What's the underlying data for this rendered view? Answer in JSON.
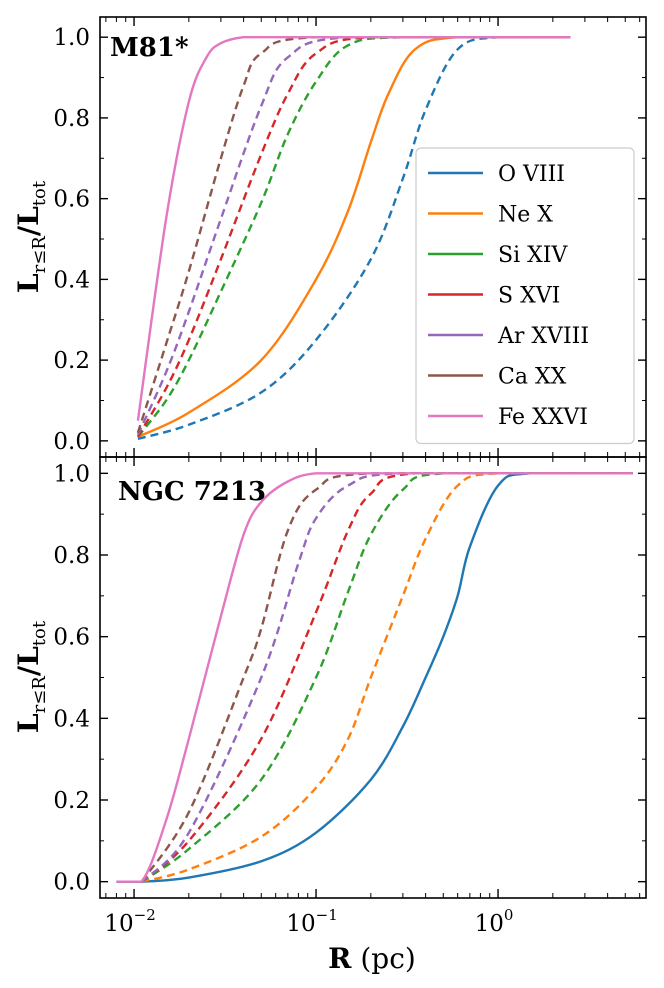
{
  "chart_data": [
    {
      "type": "line",
      "title": "M81*",
      "xlabel": "",
      "ylabel": "L r≤R / L tot",
      "xscale": "log",
      "xlim": [
        0.0065,
        6.5
      ],
      "ylim": [
        -0.04,
        1.05
      ],
      "yticks": [
        0.0,
        0.2,
        0.4,
        0.6,
        0.8,
        1.0
      ],
      "ytick_labels": [
        "0.0",
        "0.2",
        "0.4",
        "0.6",
        "0.8",
        "1.0"
      ],
      "legend": {
        "placement": "center-right"
      },
      "series": [
        {
          "name": "O VIII",
          "color": "#1f77b4",
          "style": "dashed",
          "x": [
            0.0105,
            0.02,
            0.05,
            0.1,
            0.2,
            0.3,
            0.4,
            0.6,
            1.0,
            2.5
          ],
          "y": [
            0.005,
            0.04,
            0.12,
            0.25,
            0.45,
            0.65,
            0.82,
            0.97,
            1.0,
            1.0
          ]
        },
        {
          "name": "Ne X",
          "color": "#ff7f0e",
          "style": "solid",
          "x": [
            0.0105,
            0.02,
            0.05,
            0.1,
            0.15,
            0.2,
            0.25,
            0.35,
            0.6,
            2.5
          ],
          "y": [
            0.01,
            0.07,
            0.2,
            0.4,
            0.57,
            0.74,
            0.86,
            0.97,
            1.0,
            1.0
          ]
        },
        {
          "name": "Si XIV",
          "color": "#2ca02c",
          "style": "dashed",
          "x": [
            0.0105,
            0.015,
            0.02,
            0.03,
            0.05,
            0.07,
            0.1,
            0.15,
            0.3,
            2.5
          ],
          "y": [
            0.01,
            0.1,
            0.2,
            0.37,
            0.59,
            0.76,
            0.89,
            0.98,
            1.0,
            1.0
          ]
        },
        {
          "name": "S XVI",
          "color": "#d62728",
          "style": "dashed",
          "x": [
            0.0105,
            0.015,
            0.02,
            0.03,
            0.05,
            0.07,
            0.1,
            0.2,
            2.5
          ],
          "y": [
            0.01,
            0.13,
            0.25,
            0.45,
            0.71,
            0.86,
            0.96,
            1.0,
            1.0
          ]
        },
        {
          "name": "Ar XVIII",
          "color": "#9467bd",
          "style": "dashed",
          "x": [
            0.0105,
            0.015,
            0.02,
            0.03,
            0.05,
            0.07,
            0.15,
            2.5
          ],
          "y": [
            0.015,
            0.17,
            0.32,
            0.55,
            0.83,
            0.95,
            1.0,
            1.0
          ]
        },
        {
          "name": "Ca XX",
          "color": "#8c564b",
          "style": "dashed",
          "x": [
            0.0105,
            0.015,
            0.02,
            0.03,
            0.04,
            0.05,
            0.1,
            2.5
          ],
          "y": [
            0.02,
            0.24,
            0.42,
            0.7,
            0.88,
            0.96,
            1.0,
            1.0
          ]
        },
        {
          "name": "Fe XXVI",
          "color": "#e377c2",
          "style": "solid",
          "x": [
            0.0105,
            0.015,
            0.02,
            0.025,
            0.03,
            0.04,
            0.06,
            2.5
          ],
          "y": [
            0.05,
            0.55,
            0.84,
            0.95,
            0.985,
            1.0,
            1.0,
            1.0
          ]
        }
      ]
    },
    {
      "type": "line",
      "title": "NGC 7213",
      "xlabel": "R (pc)",
      "ylabel": "L r≤R / L tot",
      "xscale": "log",
      "xlim": [
        0.0065,
        6.5
      ],
      "ylim": [
        -0.04,
        1.04
      ],
      "yticks": [
        0.0,
        0.2,
        0.4,
        0.6,
        0.8,
        1.0
      ],
      "ytick_labels": [
        "0.0",
        "0.2",
        "0.4",
        "0.6",
        "0.8",
        "1.0"
      ],
      "xticks": [
        0.01,
        0.1,
        1.0
      ],
      "xtick_labels": [
        [
          "10",
          "−2"
        ],
        [
          "10",
          "−1"
        ],
        [
          "10",
          "0"
        ]
      ],
      "series": [
        {
          "name": "O VIII",
          "color": "#1f77b4",
          "style": "solid",
          "x": [
            0.008,
            0.011,
            0.02,
            0.05,
            0.1,
            0.2,
            0.3,
            0.4,
            0.5,
            0.6,
            0.7,
            1.0,
            1.5,
            5.5
          ],
          "y": [
            0.0,
            0.0,
            0.01,
            0.05,
            0.12,
            0.25,
            0.38,
            0.5,
            0.6,
            0.7,
            0.82,
            0.97,
            1.0,
            1.0
          ]
        },
        {
          "name": "Ne X",
          "color": "#ff7f0e",
          "style": "dashed",
          "x": [
            0.011,
            0.02,
            0.05,
            0.1,
            0.15,
            0.2,
            0.3,
            0.4,
            0.6,
            1.0,
            5.5
          ],
          "y": [
            0.0,
            0.03,
            0.11,
            0.23,
            0.35,
            0.5,
            0.7,
            0.84,
            0.97,
            1.0,
            1.0
          ]
        },
        {
          "name": "Si XIV",
          "color": "#2ca02c",
          "style": "dashed",
          "x": [
            0.011,
            0.02,
            0.05,
            0.1,
            0.15,
            0.2,
            0.3,
            0.5,
            5.5
          ],
          "y": [
            0.0,
            0.08,
            0.25,
            0.5,
            0.71,
            0.85,
            0.96,
            1.0,
            1.0
          ]
        },
        {
          "name": "S XVI",
          "color": "#d62728",
          "style": "dashed",
          "x": [
            0.011,
            0.02,
            0.05,
            0.1,
            0.15,
            0.2,
            0.35,
            5.5
          ],
          "y": [
            0.0,
            0.1,
            0.35,
            0.66,
            0.86,
            0.95,
            1.0,
            1.0
          ]
        },
        {
          "name": "Ar XVIII",
          "color": "#9467bd",
          "style": "dashed",
          "x": [
            0.011,
            0.02,
            0.05,
            0.08,
            0.1,
            0.15,
            0.3,
            5.5
          ],
          "y": [
            0.0,
            0.12,
            0.5,
            0.78,
            0.89,
            0.97,
            1.0,
            1.0
          ]
        },
        {
          "name": "Ca XX",
          "color": "#8c564b",
          "style": "dashed",
          "x": [
            0.011,
            0.02,
            0.04,
            0.05,
            0.07,
            0.1,
            0.2,
            5.5
          ],
          "y": [
            0.0,
            0.17,
            0.5,
            0.62,
            0.86,
            0.96,
            1.0,
            1.0
          ]
        },
        {
          "name": "Fe XXVI",
          "color": "#e377c2",
          "style": "solid",
          "x": [
            0.008,
            0.011,
            0.015,
            0.02,
            0.03,
            0.04,
            0.05,
            0.07,
            0.1,
            0.2,
            5.5
          ],
          "y": [
            0.0,
            0.0,
            0.15,
            0.35,
            0.65,
            0.85,
            0.93,
            0.98,
            1.0,
            1.0,
            1.0
          ]
        }
      ]
    }
  ]
}
